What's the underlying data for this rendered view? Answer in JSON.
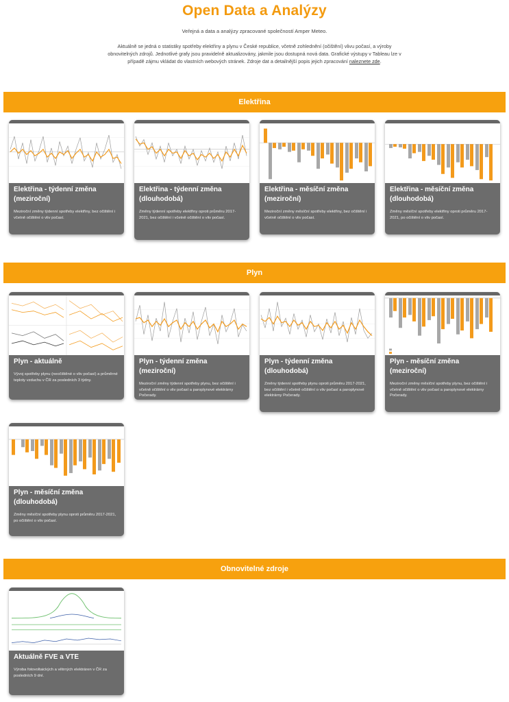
{
  "page": {
    "title": "Open Data a Analýzy",
    "subtitle": "Veřejná a data a analýzy zpracované společností Amper Meteo.",
    "intro_text": "Aktuálně se jedná o statistiky spotřeby elektřiny a plynu v České republice, včetně zohlednění (očištění) vlivu počasí, a výroby obnovitelných zdrojů. Jednotlivé grafy jsou pravidelně aktualizovány, jakmile jsou dostupná nová data. Grafické výstupy v Tableau lze v případě zájmu vkládat do vlastních webových stránek. Zdroje dat a detailnější popis jejich zpracování",
    "intro_link": "naleznete zde",
    "intro_end": "."
  },
  "colors": {
    "accent": "#f7a10e",
    "title": "#f39a0e",
    "card": "#6c6c6c",
    "bar_grey": "#a7a7a7",
    "bar_orange": "#f39a1b"
  },
  "sections": {
    "elektrina": {
      "label": "Elektřina",
      "cards": [
        {
          "title": "Elektřina - týdenní změna (meziroční)",
          "desc": "Meziroční změny týdenní spotřeby elektřiny, bez očištění i včetně očištění o vliv počasí."
        },
        {
          "title": "Elektřina - týdenní změna (dlouhodobá)",
          "desc": "Změny týdenní spotřeby elektřiny oproti průměru 2017-2021, bez očištění i včetně očištění o vliv počasí."
        },
        {
          "title": "Elektřina - měsíční změna (meziroční)",
          "desc": "Meziroční změny měsíční spotřeby elektřiny, bez očištění i včetně očištění o vliv počasí."
        },
        {
          "title": "Elektřina - měsíční změna (dlouhodobá)",
          "desc": "Změny měsíční spotřeby elektřiny oproti průměru 2017-2021, po očištění o vliv počasí."
        }
      ]
    },
    "plyn": {
      "label": "Plyn",
      "cards": [
        {
          "title": "Plyn - aktuálně",
          "desc": "Vývoj spotřeby plynu (neočištěné o vliv počasí) a průměrné teploty vzduchu v ČR za posledních 3 týdny."
        },
        {
          "title": "Plyn - týdenní změna (meziroční)",
          "desc": "Meziroční změny týdenní spotřeby plynu, bez očištění i včetně očištění o vliv počasí a paroplynové elektrárny Počerady."
        },
        {
          "title": "Plyn - týdenní změna (dlouhodobá)",
          "desc": "Změny týdenní spotřeby plynu oproti průměru 2017-2021, bez očištění i včetně očištění o vliv počasí a paroplynové elektrárny Počerady."
        },
        {
          "title": "Plyn - měsíční změna (meziroční)",
          "desc": "Meziroční změny měsíční spotřeby plynu, bez očištění i včetně očištění o vliv počasí a paroplynové elektrárny Počerady."
        },
        {
          "title": "Plyn - měsíční změna (dlouhodobá)",
          "desc": "Změny měsíční spotřeby plynu oproti průměru 2017-2021, po očištění o vliv počasí."
        }
      ]
    },
    "oze": {
      "label": "Obnovitelné zdroje",
      "cards": [
        {
          "title": "Aktuálně FVE a VTE",
          "desc": "Výroba fotovoltaických a větrných elektráren v ČR za posledních 9 dní."
        }
      ]
    }
  }
}
